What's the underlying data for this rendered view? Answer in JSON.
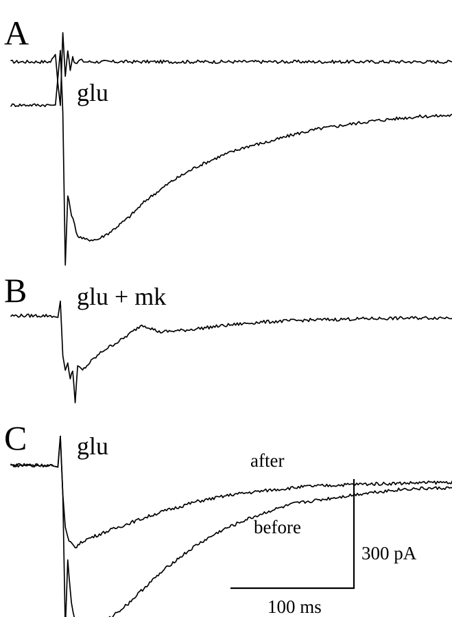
{
  "chart_data": {
    "type": "line",
    "panels": [
      {
        "letter": "A",
        "condition": "glu",
        "traces": [
          {
            "label": "",
            "points": [
              [
                -40,
                0
              ],
              [
                -8,
                0
              ],
              [
                -4,
                20
              ],
              [
                -2,
                -60
              ],
              [
                0,
                -120
              ],
              [
                2,
                80
              ],
              [
                4,
                -40
              ],
              [
                6,
                30
              ],
              [
                8,
                -20
              ],
              [
                10,
                15
              ],
              [
                12,
                -8
              ],
              [
                16,
                5
              ],
              [
                20,
                0
              ],
              [
                320,
                0
              ]
            ]
          },
          {
            "label": "",
            "points": [
              [
                -40,
                0
              ],
              [
                -4,
                0
              ],
              [
                0,
                150
              ],
              [
                2,
                -20
              ],
              [
                4,
                -440
              ],
              [
                6,
                -250
              ],
              [
                9,
                -300
              ],
              [
                14,
                -360
              ],
              [
                20,
                -370
              ],
              [
                30,
                -370
              ],
              [
                40,
                -350
              ],
              [
                55,
                -310
              ],
              [
                70,
                -260
              ],
              [
                90,
                -210
              ],
              [
                110,
                -170
              ],
              [
                130,
                -140
              ],
              [
                150,
                -115
              ],
              [
                170,
                -100
              ],
              [
                190,
                -80
              ],
              [
                210,
                -65
              ],
              [
                230,
                -55
              ],
              [
                250,
                -45
              ],
              [
                270,
                -38
              ],
              [
                290,
                -32
              ],
              [
                320,
                -28
              ]
            ]
          }
        ]
      },
      {
        "letter": "B",
        "condition": "glu + mk",
        "traces": [
          {
            "label": "",
            "points": [
              [
                -40,
                0
              ],
              [
                -8,
                0
              ],
              [
                -2,
                -5
              ],
              [
                0,
                40
              ],
              [
                2,
                -110
              ],
              [
                4,
                -150
              ],
              [
                6,
                -130
              ],
              [
                8,
                -175
              ],
              [
                10,
                -150
              ],
              [
                12,
                -235
              ],
              [
                14,
                -140
              ],
              [
                18,
                -150
              ],
              [
                25,
                -125
              ],
              [
                35,
                -95
              ],
              [
                50,
                -65
              ],
              [
                60,
                -40
              ],
              [
                66,
                -25
              ],
              [
                72,
                -32
              ],
              [
                80,
                -45
              ],
              [
                100,
                -40
              ],
              [
                130,
                -28
              ],
              [
                160,
                -18
              ],
              [
                200,
                -12
              ],
              [
                250,
                -8
              ],
              [
                320,
                -5
              ]
            ]
          }
        ]
      },
      {
        "letter": "C",
        "condition": "glu",
        "traces": [
          {
            "label": "after",
            "points": [
              [
                -40,
                0
              ],
              [
                -8,
                0
              ],
              [
                -2,
                -5
              ],
              [
                0,
                80
              ],
              [
                2,
                -80
              ],
              [
                4,
                -170
              ],
              [
                7,
                -210
              ],
              [
                12,
                -225
              ],
              [
                20,
                -205
              ],
              [
                35,
                -185
              ],
              [
                55,
                -160
              ],
              [
                80,
                -130
              ],
              [
                110,
                -100
              ],
              [
                140,
                -80
              ],
              [
                170,
                -68
              ],
              [
                200,
                -58
              ],
              [
                240,
                -52
              ],
              [
                280,
                -49
              ],
              [
                320,
                -46
              ]
            ]
          },
          {
            "label": "before",
            "points": [
              [
                -40,
                0
              ],
              [
                -8,
                0
              ],
              [
                -2,
                -5
              ],
              [
                0,
                80
              ],
              [
                2,
                -80
              ],
              [
                4,
                -450
              ],
              [
                6,
                -260
              ],
              [
                9,
                -380
              ],
              [
                13,
                -440
              ],
              [
                20,
                -455
              ],
              [
                30,
                -445
              ],
              [
                40,
                -420
              ],
              [
                55,
                -380
              ],
              [
                70,
                -330
              ],
              [
                90,
                -270
              ],
              [
                110,
                -220
              ],
              [
                130,
                -180
              ],
              [
                150,
                -150
              ],
              [
                170,
                -125
              ],
              [
                190,
                -105
              ],
              [
                210,
                -95
              ],
              [
                230,
                -85
              ],
              [
                250,
                -75
              ],
              [
                280,
                -65
              ],
              [
                320,
                -62
              ]
            ]
          }
        ]
      }
    ],
    "scale_bar": {
      "x_length": 100,
      "x_label": "100 ms",
      "y_length": 300,
      "y_label": "300 pA"
    }
  }
}
